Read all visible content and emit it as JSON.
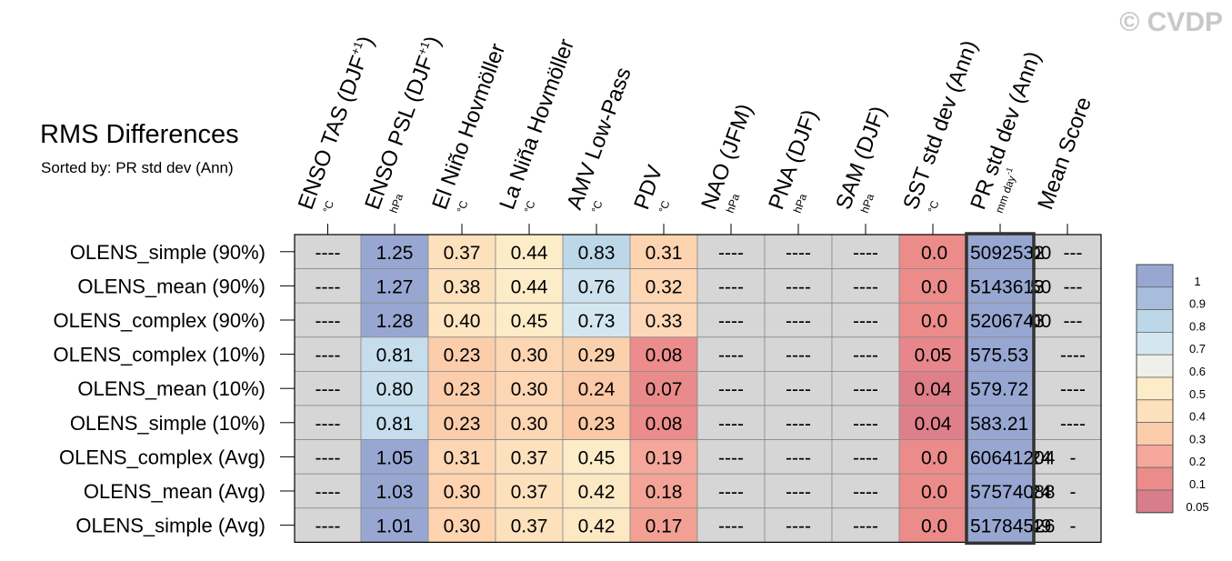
{
  "watermark": "© CVDP",
  "chart_data": {
    "type": "heatmap",
    "title": "RMS Differences",
    "subtitle": "Sorted by: PR std dev (Ann)",
    "columns": [
      {
        "label": "ENSO TAS (DJF",
        "sup": "+1",
        "close": ")",
        "unit": "°C"
      },
      {
        "label": "ENSO PSL (DJF",
        "sup": "+1",
        "close": ")",
        "unit": "hPa"
      },
      {
        "label": "El Niño Hovmöller",
        "sup": "",
        "close": "",
        "unit": "°C"
      },
      {
        "label": "La Niña Hovmöller",
        "sup": "",
        "close": "",
        "unit": "°C"
      },
      {
        "label": "AMV Low-Pass",
        "sup": "",
        "close": "",
        "unit": "°C"
      },
      {
        "label": "PDV",
        "sup": "",
        "close": "",
        "unit": "°C"
      },
      {
        "label": "NAO (JFM)",
        "sup": "",
        "close": "",
        "unit": "hPa"
      },
      {
        "label": "PNA (DJF)",
        "sup": "",
        "close": "",
        "unit": "hPa"
      },
      {
        "label": "SAM (DJF)",
        "sup": "",
        "close": "",
        "unit": "hPa"
      },
      {
        "label": "SST std dev (Ann)",
        "sup": "",
        "close": "",
        "unit": "°C"
      },
      {
        "label": "PR std dev (Ann)",
        "sup": "",
        "close": "",
        "unit": "mm day",
        "unit_sup": "-1"
      },
      {
        "label": "Mean Score",
        "sup": "",
        "close": "",
        "unit": ""
      }
    ],
    "rows": [
      {
        "name": "OLENS_simple (90%)",
        "cells": [
          "----",
          "1.25",
          "0.37",
          "0.44",
          "0.83",
          "0.31",
          "----",
          "----",
          "----",
          "0.0",
          "5092532",
          "00"
        ],
        "mean": "---"
      },
      {
        "name": "OLENS_mean (90%)",
        "cells": [
          "----",
          "1.27",
          "0.38",
          "0.44",
          "0.76",
          "0.32",
          "----",
          "----",
          "----",
          "0.0",
          "5143613",
          "50"
        ],
        "mean": "---"
      },
      {
        "name": "OLENS_complex (90%)",
        "cells": [
          "----",
          "1.28",
          "0.40",
          "0.45",
          "0.73",
          "0.33",
          "----",
          "----",
          "----",
          "0.0",
          "5206743",
          "00"
        ],
        "mean": "---"
      },
      {
        "name": "OLENS_complex (10%)",
        "cells": [
          "----",
          "0.81",
          "0.23",
          "0.30",
          "0.29",
          "0.08",
          "----",
          "----",
          "----",
          "0.05",
          "575.53",
          ""
        ],
        "mean": "----"
      },
      {
        "name": "OLENS_mean (10%)",
        "cells": [
          "----",
          "0.80",
          "0.23",
          "0.30",
          "0.24",
          "0.07",
          "----",
          "----",
          "----",
          "0.04",
          "579.72",
          ""
        ],
        "mean": "----"
      },
      {
        "name": "OLENS_simple (10%)",
        "cells": [
          "----",
          "0.81",
          "0.23",
          "0.30",
          "0.23",
          "0.08",
          "----",
          "----",
          "----",
          "0.04",
          "583.21",
          ""
        ],
        "mean": "----"
      },
      {
        "name": "OLENS_complex (Avg)",
        "cells": [
          "----",
          "1.05",
          "0.31",
          "0.37",
          "0.45",
          "0.19",
          "----",
          "----",
          "----",
          "0.0",
          "60641204",
          "24"
        ],
        "mean": "-"
      },
      {
        "name": "OLENS_mean (Avg)",
        "cells": [
          "----",
          "1.03",
          "0.30",
          "0.37",
          "0.42",
          "0.18",
          "----",
          "----",
          "----",
          "0.0",
          "57574088",
          "24"
        ],
        "mean": "-"
      },
      {
        "name": "OLENS_simple (Avg)",
        "cells": [
          "----",
          "1.01",
          "0.30",
          "0.37",
          "0.42",
          "0.17",
          "----",
          "----",
          "----",
          "0.0",
          "51784526",
          "49"
        ],
        "mean": "-"
      }
    ],
    "cell_colors": [
      [
        "#d6d6d6",
        "#98a7d2",
        "#fde1bd",
        "#fdecc8",
        "#bcd7e8",
        "#fdd3b0",
        "#d6d6d6",
        "#d6d6d6",
        "#d6d6d6",
        "#eb8c8b",
        "#98a7d2",
        "#d6d6d6"
      ],
      [
        "#d6d6d6",
        "#98a7d2",
        "#fde1bd",
        "#fdecc8",
        "#cde2ee",
        "#fdd6b4",
        "#d6d6d6",
        "#d6d6d6",
        "#d6d6d6",
        "#eb8c8b",
        "#98a7d2",
        "#d6d6d6"
      ],
      [
        "#d6d6d6",
        "#98a7d2",
        "#fde5c1",
        "#fdecc8",
        "#d4e7f0",
        "#fdd8b8",
        "#d6d6d6",
        "#d6d6d6",
        "#d6d6d6",
        "#eb8c8b",
        "#98a7d2",
        "#d6d6d6"
      ],
      [
        "#d6d6d6",
        "#c5dded",
        "#fbcdab",
        "#fdd6b4",
        "#fbd1ad",
        "#ec8c8c",
        "#d6d6d6",
        "#d6d6d6",
        "#d6d6d6",
        "#e8878b",
        "#98a7d2",
        "#d6d6d6"
      ],
      [
        "#d6d6d6",
        "#c8dfed",
        "#fbcdab",
        "#fdd6b4",
        "#fbcaa8",
        "#ea8b8b",
        "#d6d6d6",
        "#d6d6d6",
        "#d6d6d6",
        "#df7f8a",
        "#98a7d2",
        "#d6d6d6"
      ],
      [
        "#d6d6d6",
        "#c5dded",
        "#fbcdab",
        "#fdd6b4",
        "#fbc9a6",
        "#ec8c8c",
        "#d6d6d6",
        "#d6d6d6",
        "#d6d6d6",
        "#df7f8a",
        "#98a7d2",
        "#d6d6d6"
      ],
      [
        "#d6d6d6",
        "#98a7d2",
        "#fdd6b4",
        "#fde1bd",
        "#fdecc8",
        "#f4a79a",
        "#d6d6d6",
        "#d6d6d6",
        "#d6d6d6",
        "#eb8c8b",
        "#98a7d2",
        "#d6d6d6"
      ],
      [
        "#d6d6d6",
        "#98a7d2",
        "#fdd3b0",
        "#fde1bd",
        "#fde8c4",
        "#f3a497",
        "#d6d6d6",
        "#d6d6d6",
        "#d6d6d6",
        "#eb8c8b",
        "#98a7d2",
        "#d6d6d6"
      ],
      [
        "#d6d6d6",
        "#98a7d2",
        "#fdd3b0",
        "#fde1bd",
        "#fde8c4",
        "#f2a094",
        "#d6d6d6",
        "#d6d6d6",
        "#d6d6d6",
        "#eb8c8b",
        "#98a7d2",
        "#d6d6d6"
      ]
    ],
    "highlight_column": "PR std dev (Ann)",
    "colorbar": {
      "labels": [
        "1",
        "0.9",
        "0.8",
        "0.7",
        "0.6",
        "0.5",
        "0.4",
        "0.3",
        "0.2",
        "0.1",
        "0.05"
      ],
      "colors": [
        "#98a7d2",
        "#a8bddb",
        "#bcd7e8",
        "#d4e7f0",
        "#f0f0ea",
        "#fdecc8",
        "#fde1bd",
        "#fbcdab",
        "#f4a79a",
        "#eb8c8b",
        "#d87d8c"
      ]
    }
  }
}
